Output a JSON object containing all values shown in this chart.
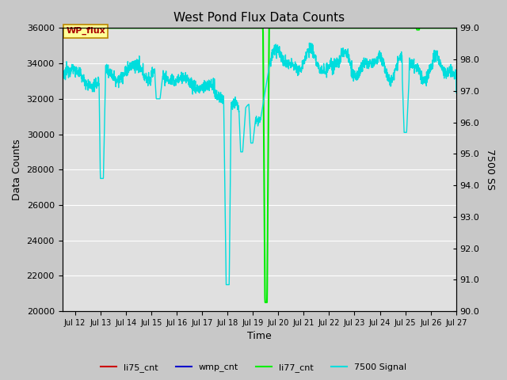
{
  "title": "West Pond Flux Data Counts",
  "xlabel": "Time",
  "ylabel": "Data Counts",
  "ylabel_right": "7500 SS",
  "ylim_left": [
    20000,
    36000
  ],
  "ylim_right": [
    90.0,
    99.0
  ],
  "yticks_left": [
    20000,
    22000,
    24000,
    26000,
    28000,
    30000,
    32000,
    34000,
    36000
  ],
  "yticks_right": [
    90.0,
    91.0,
    92.0,
    93.0,
    94.0,
    95.0,
    96.0,
    97.0,
    98.0,
    99.0
  ],
  "fig_bg_color": "#c8c8c8",
  "plot_bg_color": "#e0e0e0",
  "annotation_box_facecolor": "#ffff99",
  "annotation_box_edgecolor": "#bb8800",
  "annotation_text": "WP_flux",
  "annotation_text_color": "#aa0000",
  "xstart_day": 11.5,
  "xend_day": 27.0,
  "xtick_days": [
    12,
    13,
    14,
    15,
    16,
    17,
    18,
    19,
    20,
    21,
    22,
    23,
    24,
    25,
    26,
    27
  ],
  "cyan_color": "#00dddd",
  "green_color": "#00ee00",
  "red_color": "#cc0000",
  "blue_color": "#0000cc",
  "grid_color": "#ffffff"
}
